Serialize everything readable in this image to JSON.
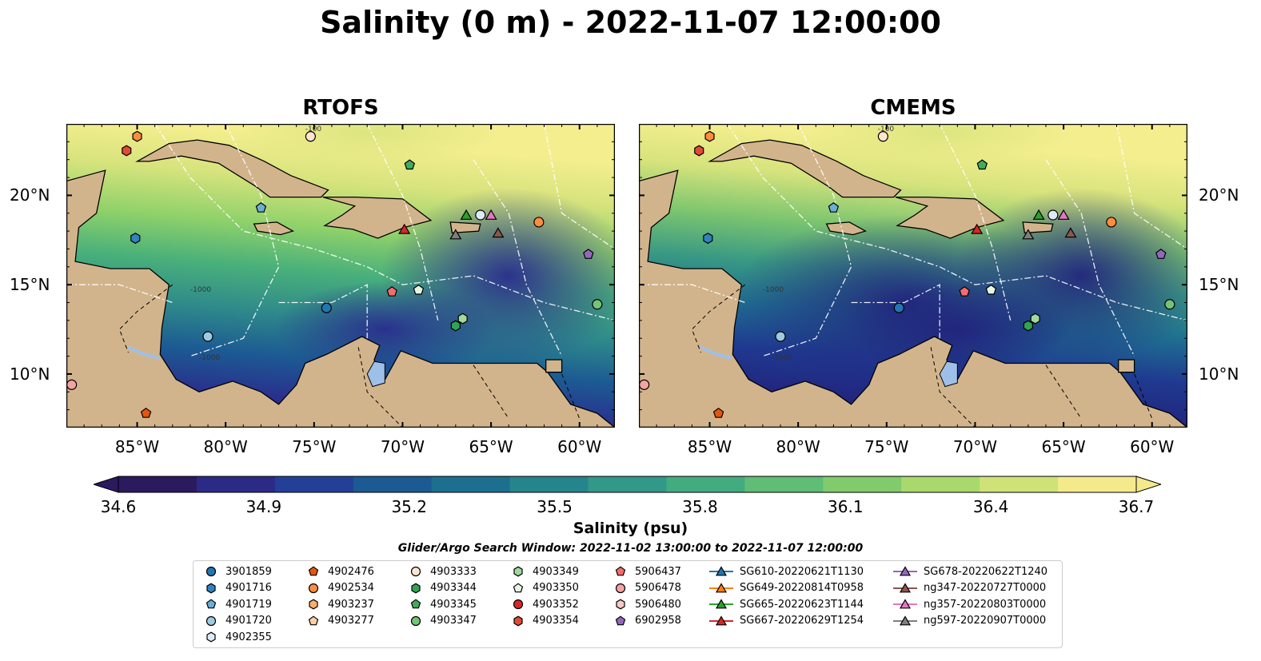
{
  "title": "Salinity (0 m) - 2022-11-07 12:00:00",
  "panels": [
    {
      "title": "RTOFS",
      "colors": [
        "#2d1b63",
        "#2a2c8d",
        "#1c5b93",
        "#2f8b8a",
        "#49b07a",
        "#8fd16a",
        "#d6e37c",
        "#f4ee8f"
      ]
    },
    {
      "title": "CMEMS",
      "colors": [
        "#271d6a",
        "#22247d",
        "#1f3a90",
        "#1f6f91",
        "#3a9a83",
        "#7cc56f",
        "#d6e37c",
        "#f4ee8f"
      ]
    }
  ],
  "map": {
    "lon_range": [
      -89,
      -58
    ],
    "lat_range": [
      7,
      24
    ],
    "lon_ticks": [
      "85°W",
      "80°W",
      "75°W",
      "70°W",
      "65°W",
      "60°W"
    ],
    "lon_values": [
      -85,
      -80,
      -75,
      -70,
      -65,
      -60
    ],
    "lat_ticks": [
      "20°N",
      "15°N",
      "10°N"
    ],
    "lat_values": [
      20,
      15,
      10
    ],
    "contour_labels": [
      "-100",
      "-1000"
    ],
    "land_color": "#d2b48c",
    "lake_color": "#9ec0e8"
  },
  "colorbar": {
    "label": "Salinity (psu)",
    "min": 34.6,
    "max": 36.7,
    "ticks": [
      "34.6",
      "34.9",
      "35.2",
      "35.5",
      "35.8",
      "36.1",
      "36.4",
      "36.7"
    ],
    "colors": [
      "#2b1a5e",
      "#2b2a86",
      "#243f98",
      "#1b5a93",
      "#1c6f8f",
      "#26858c",
      "#329889",
      "#43ab80",
      "#5fbd76",
      "#82cb6d",
      "#a9d86c",
      "#cfe277",
      "#f4ea8c"
    ]
  },
  "search_window": "Glider/Argo Search Window: 2022-11-02 13:00:00 to 2022-11-07 12:00:00",
  "legend": {
    "columns": [
      [
        {
          "label": "3901859",
          "marker": "circle",
          "color": "#1f77b4"
        },
        {
          "label": "4901716",
          "marker": "hexagon",
          "color": "#3182bd"
        },
        {
          "label": "4901719",
          "marker": "pentagon",
          "color": "#6baed6"
        },
        {
          "label": "4901720",
          "marker": "circle",
          "color": "#9ecae1"
        },
        {
          "label": "4902355",
          "marker": "hexagon",
          "color": "#deebf7"
        }
      ],
      [
        {
          "label": "4902476",
          "marker": "pentagon",
          "color": "#e6550d"
        },
        {
          "label": "4902534",
          "marker": "circle",
          "color": "#fd8d3c"
        },
        {
          "label": "4903237",
          "marker": "hexagon",
          "color": "#fdae6b"
        },
        {
          "label": "4903277",
          "marker": "pentagon",
          "color": "#fdd0a2"
        }
      ],
      [
        {
          "label": "4903333",
          "marker": "circle",
          "color": "#fee6ce"
        },
        {
          "label": "4903344",
          "marker": "hexagon",
          "color": "#31a354"
        },
        {
          "label": "4903345",
          "marker": "pentagon",
          "color": "#41ab5d"
        },
        {
          "label": "4903347",
          "marker": "circle",
          "color": "#74c476"
        }
      ],
      [
        {
          "label": "4903349",
          "marker": "hexagon",
          "color": "#a1d99b"
        },
        {
          "label": "4903350",
          "marker": "pentagon",
          "color": "#e5f5e0"
        },
        {
          "label": "4903352",
          "marker": "circle",
          "color": "#d62728"
        },
        {
          "label": "4903354",
          "marker": "hexagon",
          "color": "#e34a33"
        }
      ],
      [
        {
          "label": "5906437",
          "marker": "pentagon",
          "color": "#f46d6d"
        },
        {
          "label": "5906478",
          "marker": "circle",
          "color": "#f4a3a3"
        },
        {
          "label": "5906480",
          "marker": "hexagon",
          "color": "#fbc8c8"
        },
        {
          "label": "6902958",
          "marker": "pentagon",
          "color": "#9467bd"
        }
      ],
      [
        {
          "label": "SG610-20220621T1130",
          "marker": "triangle",
          "color": "#1f77b4"
        },
        {
          "label": "SG649-20220814T0958",
          "marker": "triangle",
          "color": "#ff7f0e"
        },
        {
          "label": "SG665-20220623T1144",
          "marker": "triangle",
          "color": "#2ca02c"
        },
        {
          "label": "SG667-20220629T1254",
          "marker": "triangle",
          "color": "#d62728"
        }
      ],
      [
        {
          "label": "SG678-20220622T1240",
          "marker": "triangle",
          "color": "#9467bd"
        },
        {
          "label": "ng347-20220727T0000",
          "marker": "triangle",
          "color": "#8c564b"
        },
        {
          "label": "ng357-20220803T0000",
          "marker": "triangle",
          "color": "#e377c2"
        },
        {
          "label": "ng597-20220907T0000",
          "marker": "triangle",
          "color": "#7f7f7f"
        }
      ]
    ]
  },
  "stations": [
    {
      "lon": -85.0,
      "lat": 23.3,
      "marker": "hexagon",
      "color": "#fd8d3c"
    },
    {
      "lon": -85.6,
      "lat": 22.5,
      "marker": "hexagon",
      "color": "#e34a33"
    },
    {
      "lon": -75.2,
      "lat": 23.3,
      "marker": "circle",
      "color": "#fee6ce"
    },
    {
      "lon": -69.6,
      "lat": 21.7,
      "marker": "pentagon",
      "color": "#41ab5d"
    },
    {
      "lon": -78.0,
      "lat": 19.3,
      "marker": "pentagon",
      "color": "#6baed6"
    },
    {
      "lon": -85.1,
      "lat": 17.6,
      "marker": "hexagon",
      "color": "#3182bd"
    },
    {
      "lon": -66.4,
      "lat": 18.9,
      "marker": "triangle",
      "color": "#2ca02c"
    },
    {
      "lon": -65.6,
      "lat": 18.9,
      "marker": "circle",
      "color": "#deebf7"
    },
    {
      "lon": -65.0,
      "lat": 18.9,
      "marker": "triangle",
      "color": "#e377c2"
    },
    {
      "lon": -62.3,
      "lat": 18.5,
      "marker": "circle",
      "color": "#fd8d3c"
    },
    {
      "lon": -69.9,
      "lat": 18.1,
      "marker": "triangle",
      "color": "#d62728"
    },
    {
      "lon": -67.0,
      "lat": 17.8,
      "marker": "triangle",
      "color": "#7f7f7f"
    },
    {
      "lon": -64.6,
      "lat": 17.9,
      "marker": "triangle",
      "color": "#8c564b"
    },
    {
      "lon": -59.5,
      "lat": 16.7,
      "marker": "pentagon",
      "color": "#9467bd"
    },
    {
      "lon": -70.6,
      "lat": 14.6,
      "marker": "pentagon",
      "color": "#f46d6d"
    },
    {
      "lon": -69.1,
      "lat": 14.7,
      "marker": "pentagon",
      "color": "#e5f5e0"
    },
    {
      "lon": -74.3,
      "lat": 13.7,
      "marker": "circle",
      "color": "#1f77b4"
    },
    {
      "lon": -66.6,
      "lat": 13.1,
      "marker": "hexagon",
      "color": "#a1d99b"
    },
    {
      "lon": -67.0,
      "lat": 12.7,
      "marker": "hexagon",
      "color": "#31a354"
    },
    {
      "lon": -59.0,
      "lat": 13.9,
      "marker": "circle",
      "color": "#74c476"
    },
    {
      "lon": -81.0,
      "lat": 12.1,
      "marker": "circle",
      "color": "#9ecae1"
    },
    {
      "lon": -88.7,
      "lat": 9.4,
      "marker": "circle",
      "color": "#f4a3a3"
    },
    {
      "lon": -84.5,
      "lat": 7.8,
      "marker": "pentagon",
      "color": "#e6550d"
    }
  ]
}
